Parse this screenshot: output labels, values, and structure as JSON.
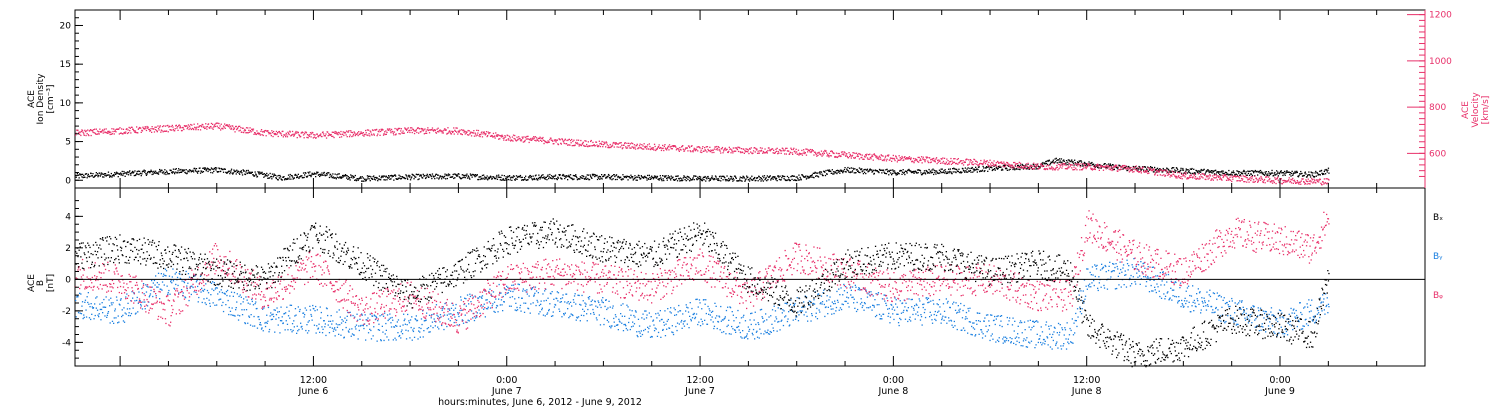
{
  "figure": {
    "xlabel": "hours:minutes, June  6, 2012 - June  9, 2012",
    "colors": {
      "black": "#000000",
      "pink": "#e8306a",
      "blue": "#1a7fe0"
    }
  },
  "chart_data": [
    {
      "type": "scatter",
      "panel": "top",
      "ylabel_left": [
        "ACE",
        "Ion Density",
        "[cm⁻³]"
      ],
      "ylabel_right": [
        "ACE",
        "Velocity",
        "[km/s]"
      ],
      "xlim_hours": [
        -2.8,
        81
      ],
      "y_left": {
        "lim": [
          -1,
          22
        ],
        "ticks": [
          0,
          5,
          10,
          15,
          20
        ],
        "tick_labels": [
          "0",
          "5",
          "10",
          "15",
          "20"
        ]
      },
      "y_right": {
        "lim": [
          450,
          1220
        ],
        "ticks": [
          600,
          800,
          1000,
          1200
        ],
        "tick_labels": [
          "600",
          "800",
          "1000",
          "1200"
        ]
      },
      "x_ticks": [
        {
          "hour": 12,
          "top": "12:00",
          "bottom": "June 6"
        },
        {
          "hour": 24,
          "top": "0:00",
          "bottom": "June 7"
        },
        {
          "hour": 36,
          "top": "12:00",
          "bottom": "June 7"
        },
        {
          "hour": 48,
          "top": "0:00",
          "bottom": "June 8"
        },
        {
          "hour": 60,
          "top": "12:00",
          "bottom": "June 8"
        },
        {
          "hour": 72,
          "top": "0:00",
          "bottom": "June 9"
        }
      ],
      "series": [
        {
          "axis": "left",
          "color": "#000000",
          "data_hours": [
            -2.8,
            0,
            3,
            6,
            8,
            10,
            12,
            15,
            18,
            21,
            24,
            27,
            30,
            33,
            36,
            39,
            42,
            45,
            48,
            51,
            54,
            57,
            58,
            60,
            62,
            65,
            68,
            70,
            72,
            74,
            75
          ],
          "data_values": [
            0.6,
            0.9,
            1.2,
            1.4,
            1.0,
            0.4,
            0.9,
            0.3,
            0.5,
            0.6,
            0.4,
            0.5,
            0.5,
            0.4,
            0.3,
            0.3,
            0.4,
            1.4,
            1.1,
            1.2,
            1.6,
            1.9,
            2.6,
            2.2,
            1.7,
            1.4,
            1.1,
            1.0,
            1.0,
            0.8,
            1.3
          ]
        },
        {
          "axis": "right",
          "color": "#e8306a",
          "data_hours": [
            -2.8,
            0,
            3,
            6,
            9,
            12,
            15,
            18,
            21,
            24,
            27,
            30,
            33,
            36,
            39,
            42,
            45,
            48,
            51,
            54,
            57,
            60,
            63,
            66,
            69,
            72,
            75
          ],
          "data_values": [
            690,
            700,
            710,
            720,
            690,
            680,
            690,
            700,
            700,
            670,
            655,
            640,
            630,
            620,
            615,
            610,
            595,
            580,
            570,
            560,
            545,
            545,
            535,
            505,
            495,
            485,
            480
          ]
        }
      ]
    },
    {
      "type": "scatter",
      "panel": "bottom",
      "ylabel_left": [
        "ACE",
        "B",
        "[nT]"
      ],
      "xlim_hours": [
        -2.8,
        81
      ],
      "y": {
        "lim": [
          -5.5,
          5.8
        ],
        "ticks": [
          -4,
          -2,
          0,
          2,
          4
        ],
        "tick_labels": [
          "-4",
          "-2",
          "0",
          "2",
          "4"
        ],
        "zero_line": true
      },
      "x_ticks_hours": [
        12,
        24,
        36,
        48,
        60,
        72
      ],
      "legend_position": "right",
      "series": [
        {
          "name": "Bₓ",
          "color": "#000000",
          "data_hours": [
            -2.8,
            0,
            3,
            6,
            9,
            12,
            15,
            18,
            21,
            24,
            27,
            30,
            33,
            36,
            39,
            42,
            45,
            48,
            51,
            54,
            57,
            59,
            60,
            63,
            66,
            69,
            72,
            74,
            75
          ],
          "data_values": [
            1.5,
            2.0,
            1.5,
            0.5,
            0.0,
            3.0,
            1.0,
            -1.0,
            0.5,
            2.5,
            3.0,
            2.0,
            1.5,
            3.0,
            0.0,
            -1.5,
            1.0,
            1.5,
            1.5,
            0.5,
            1.0,
            0.5,
            -3.0,
            -4.8,
            -4.2,
            -2.5,
            -3.0,
            -3.5,
            0.2
          ]
        },
        {
          "name": "Bᵧ",
          "color": "#1a7fe0",
          "data_hours": [
            -2.8,
            0,
            3,
            6,
            9,
            12,
            15,
            18,
            21,
            24,
            27,
            30,
            33,
            36,
            39,
            42,
            45,
            48,
            51,
            54,
            57,
            59,
            60,
            63,
            66,
            69,
            72,
            74,
            75
          ],
          "data_values": [
            -1.5,
            -2.0,
            0.0,
            -1.0,
            -2.5,
            -2.5,
            -3.0,
            -3.0,
            -2.0,
            -1.0,
            -1.5,
            -2.0,
            -3.0,
            -2.0,
            -3.0,
            -2.0,
            -1.0,
            -2.0,
            -2.0,
            -3.0,
            -3.5,
            -3.5,
            0.0,
            0.5,
            -1.0,
            -2.0,
            -2.8,
            -2.0,
            -1.5
          ]
        },
        {
          "name": "Bᵩ",
          "color": "#e8306a",
          "data_hours": [
            -2.8,
            0,
            3,
            6,
            9,
            12,
            15,
            18,
            21,
            24,
            27,
            30,
            33,
            36,
            39,
            42,
            45,
            48,
            51,
            54,
            57,
            59,
            60,
            63,
            66,
            69,
            72,
            74,
            75
          ],
          "data_values": [
            0.5,
            0.0,
            -2.0,
            1.5,
            -1.0,
            1.0,
            -2.0,
            -1.0,
            -2.5,
            0.0,
            0.5,
            0.0,
            -0.5,
            1.0,
            -1.0,
            1.5,
            0.5,
            -0.5,
            0.0,
            0.0,
            -1.0,
            -1.0,
            3.5,
            1.5,
            0.5,
            3.0,
            2.5,
            2.0,
            4.0
          ]
        }
      ]
    }
  ]
}
